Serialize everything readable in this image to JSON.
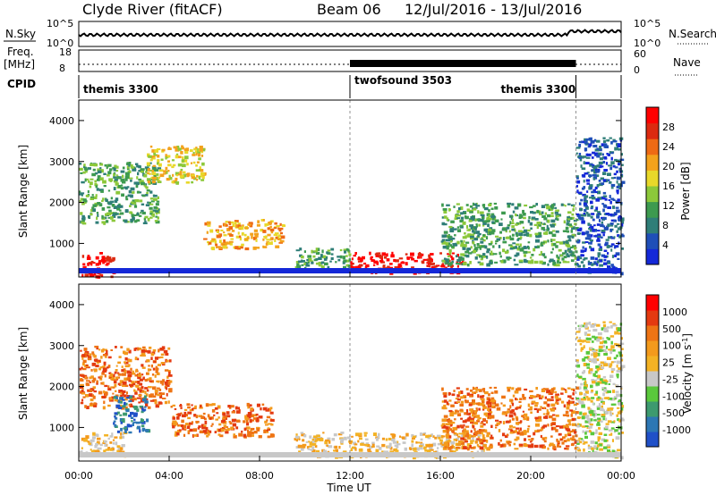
{
  "header": {
    "station": "Clyde River (fitACF)",
    "beam": "Beam 06",
    "dates": "12/Jul/2016 - 13/Jul/2016"
  },
  "summary_panels": {
    "nsky_label": "N.Sky",
    "nsky_ticks": [
      "10^5",
      "10^0"
    ],
    "nsearch_label": "N.Search",
    "nsearch_ticks": [
      "10^5",
      "10^0"
    ],
    "freq_label": "Freq.",
    "freq_unit": "[MHz]",
    "freq_ticks": [
      "18",
      "8"
    ],
    "nave_label": "Nave",
    "nave_ticks": [
      "60",
      "0"
    ],
    "cpid_label": "CPID",
    "cpid_segments": [
      {
        "name": "themis 3300",
        "start_h": 0,
        "end_h": 12
      },
      {
        "name": "twofsound 3503",
        "start_h": 12,
        "end_h": 22
      },
      {
        "name": "themis 3300",
        "start_h": 22,
        "end_h": 24
      }
    ]
  },
  "chart_data": [
    {
      "type": "heatmap",
      "panel": "power",
      "xlabel": "",
      "ylabel": "Slant Range [km]",
      "xlim": [
        0,
        24
      ],
      "ylim": [
        180,
        4500
      ],
      "yticks": [
        1000,
        2000,
        3000,
        4000
      ],
      "colorbar": {
        "label": "Power [dB]",
        "ticks": [
          "4",
          "8",
          "12",
          "16",
          "20",
          "24",
          "28"
        ],
        "colors": [
          "#1428d8",
          "#1f4fb8",
          "#2f7e78",
          "#3d9a4f",
          "#8cc83a",
          "#e8d82a",
          "#f3a21c",
          "#ee6a14",
          "#dc2a10",
          "#ff0000"
        ]
      },
      "regions": [
        {
          "t0": 0.0,
          "t1": 1.5,
          "r0": 200,
          "r1": 800,
          "value": 28
        },
        {
          "t0": 0.0,
          "t1": 3.5,
          "r0": 1500,
          "r1": 3000,
          "value": 10
        },
        {
          "t0": 3.0,
          "t1": 5.5,
          "r0": 2500,
          "r1": 3400,
          "value": 16
        },
        {
          "t0": 5.5,
          "t1": 9.0,
          "r0": 900,
          "r1": 1600,
          "value": 20
        },
        {
          "t0": 9.5,
          "t1": 12.0,
          "r0": 400,
          "r1": 900,
          "value": 12
        },
        {
          "t0": 12.0,
          "t1": 17.0,
          "r0": 300,
          "r1": 800,
          "value": 28
        },
        {
          "t0": 16.0,
          "t1": 22.0,
          "r0": 500,
          "r1": 2000,
          "value": 12
        },
        {
          "t0": 22.0,
          "t1": 24.0,
          "r0": 300,
          "r1": 3600,
          "value": 6
        }
      ]
    },
    {
      "type": "heatmap",
      "panel": "velocity",
      "xlabel": "Time UT",
      "ylabel": "Slant Range [km]",
      "xlim": [
        0,
        24
      ],
      "ylim": [
        180,
        4500
      ],
      "yticks": [
        1000,
        2000,
        3000,
        4000
      ],
      "xticks": [
        "00:00",
        "04:00",
        "08:00",
        "12:00",
        "16:00",
        "20:00",
        "00:00"
      ],
      "colorbar": {
        "label": "Velocity [m s^-1]",
        "ticks": [
          "1000",
          "500",
          "100",
          "25",
          "-25",
          "-100",
          "-500",
          "-1000"
        ],
        "colors": [
          "#2050c8",
          "#2d77b4",
          "#3d9a6f",
          "#5ac83c",
          "#c8c8c8",
          "#f3b224",
          "#f39a1c",
          "#ee7414",
          "#e43a10",
          "#ff0000"
        ]
      },
      "regions": [
        {
          "t0": 0.0,
          "t1": 2.0,
          "r0": 300,
          "r1": 900,
          "value": "-100"
        },
        {
          "t0": 0.0,
          "t1": 4.0,
          "r0": 1500,
          "r1": 3000,
          "value": "-500"
        },
        {
          "t0": 1.5,
          "t1": 3.0,
          "r0": 900,
          "r1": 1800,
          "value": "500"
        },
        {
          "t0": 4.0,
          "t1": 8.5,
          "r0": 800,
          "r1": 1600,
          "value": "-500"
        },
        {
          "t0": 9.5,
          "t1": 18.0,
          "r0": 300,
          "r1": 900,
          "value": "-100"
        },
        {
          "t0": 16.0,
          "t1": 22.0,
          "r0": 500,
          "r1": 2000,
          "value": "-500"
        },
        {
          "t0": 22.0,
          "t1": 24.0,
          "r0": 300,
          "r1": 3600,
          "value": "25"
        }
      ]
    }
  ]
}
